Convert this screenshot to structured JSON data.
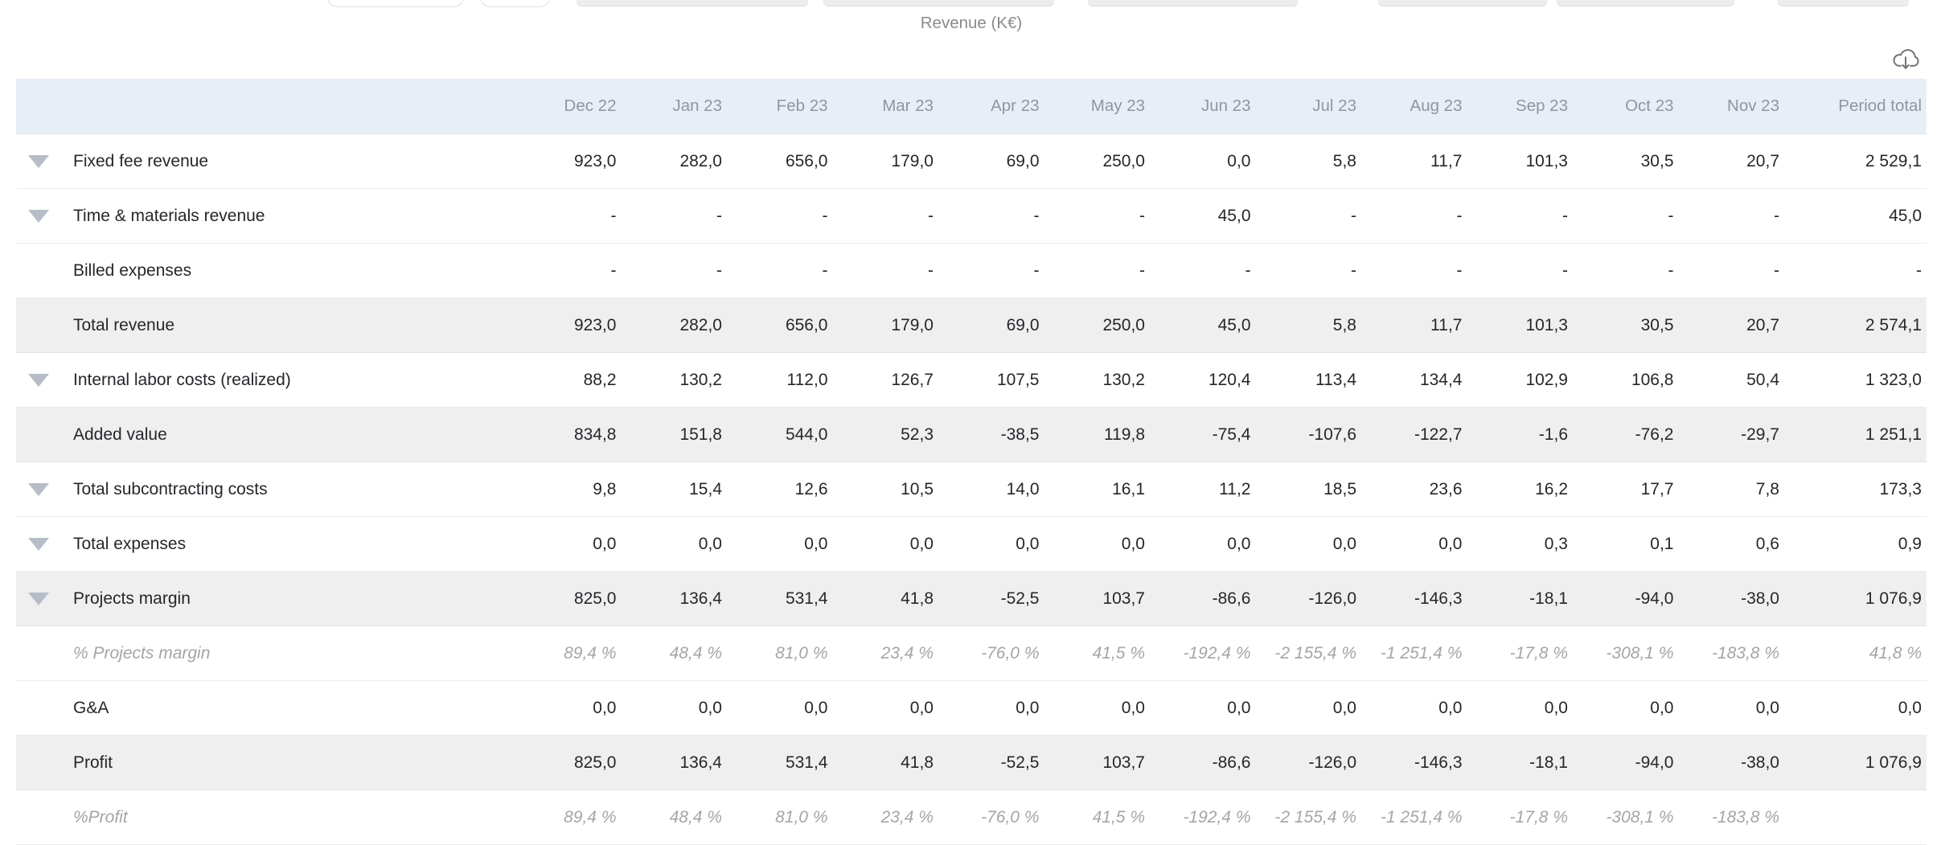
{
  "title": "Revenue (K€)",
  "icons": {
    "download": "cloud-download-icon",
    "row_expand": "triangle-down-icon"
  },
  "colors": {
    "header_bg": "#e8eef6",
    "highlight_row_bg": "#efefef",
    "header_text": "#8d97a2",
    "body_text": "#24272b",
    "percent_text": "#a5a5a5",
    "triangle": "#b6bdc6"
  },
  "table": {
    "columns": [
      "",
      "Dec 22",
      "Jan 23",
      "Feb 23",
      "Mar 23",
      "Apr 23",
      "May 23",
      "Jun 23",
      "Jul 23",
      "Aug 23",
      "Sep 23",
      "Oct 23",
      "Nov 23",
      "Period total"
    ],
    "rows": [
      {
        "label": "Fixed fee revenue",
        "expandable": true,
        "highlight": false,
        "percent": false,
        "values": [
          "923,0",
          "282,0",
          "656,0",
          "179,0",
          "69,0",
          "250,0",
          "0,0",
          "5,8",
          "11,7",
          "101,3",
          "30,5",
          "20,7",
          "2 529,1"
        ]
      },
      {
        "label": "Time & materials revenue",
        "expandable": true,
        "highlight": false,
        "percent": false,
        "values": [
          "-",
          "-",
          "-",
          "-",
          "-",
          "-",
          "45,0",
          "-",
          "-",
          "-",
          "-",
          "-",
          "45,0"
        ]
      },
      {
        "label": "Billed expenses",
        "expandable": false,
        "highlight": false,
        "percent": false,
        "values": [
          "-",
          "-",
          "-",
          "-",
          "-",
          "-",
          "-",
          "-",
          "-",
          "-",
          "-",
          "-",
          "-"
        ]
      },
      {
        "label": "Total revenue",
        "expandable": false,
        "highlight": true,
        "percent": false,
        "values": [
          "923,0",
          "282,0",
          "656,0",
          "179,0",
          "69,0",
          "250,0",
          "45,0",
          "5,8",
          "11,7",
          "101,3",
          "30,5",
          "20,7",
          "2 574,1"
        ]
      },
      {
        "label": "Internal labor costs (realized)",
        "expandable": true,
        "highlight": false,
        "percent": false,
        "values": [
          "88,2",
          "130,2",
          "112,0",
          "126,7",
          "107,5",
          "130,2",
          "120,4",
          "113,4",
          "134,4",
          "102,9",
          "106,8",
          "50,4",
          "1 323,0"
        ]
      },
      {
        "label": "Added value",
        "expandable": false,
        "highlight": true,
        "percent": false,
        "values": [
          "834,8",
          "151,8",
          "544,0",
          "52,3",
          "-38,5",
          "119,8",
          "-75,4",
          "-107,6",
          "-122,7",
          "-1,6",
          "-76,2",
          "-29,7",
          "1 251,1"
        ]
      },
      {
        "label": "Total subcontracting costs",
        "expandable": true,
        "highlight": false,
        "percent": false,
        "values": [
          "9,8",
          "15,4",
          "12,6",
          "10,5",
          "14,0",
          "16,1",
          "11,2",
          "18,5",
          "23,6",
          "16,2",
          "17,7",
          "7,8",
          "173,3"
        ]
      },
      {
        "label": "Total expenses",
        "expandable": true,
        "highlight": false,
        "percent": false,
        "values": [
          "0,0",
          "0,0",
          "0,0",
          "0,0",
          "0,0",
          "0,0",
          "0,0",
          "0,0",
          "0,0",
          "0,3",
          "0,1",
          "0,6",
          "0,9"
        ]
      },
      {
        "label": "Projects margin",
        "expandable": true,
        "highlight": true,
        "percent": false,
        "values": [
          "825,0",
          "136,4",
          "531,4",
          "41,8",
          "-52,5",
          "103,7",
          "-86,6",
          "-126,0",
          "-146,3",
          "-18,1",
          "-94,0",
          "-38,0",
          "1 076,9"
        ]
      },
      {
        "label": "% Projects margin",
        "expandable": false,
        "highlight": false,
        "percent": true,
        "values": [
          "89,4 %",
          "48,4 %",
          "81,0 %",
          "23,4 %",
          "-76,0 %",
          "41,5 %",
          "-192,4 %",
          "-2 155,4 %",
          "-1 251,4 %",
          "-17,8 %",
          "-308,1 %",
          "-183,8 %",
          "41,8 %"
        ]
      },
      {
        "label": "G&A",
        "expandable": false,
        "highlight": false,
        "percent": false,
        "values": [
          "0,0",
          "0,0",
          "0,0",
          "0,0",
          "0,0",
          "0,0",
          "0,0",
          "0,0",
          "0,0",
          "0,0",
          "0,0",
          "0,0",
          "0,0"
        ]
      },
      {
        "label": "Profit",
        "expandable": false,
        "highlight": true,
        "percent": false,
        "values": [
          "825,0",
          "136,4",
          "531,4",
          "41,8",
          "-52,5",
          "103,7",
          "-86,6",
          "-126,0",
          "-146,3",
          "-18,1",
          "-94,0",
          "-38,0",
          "1 076,9"
        ]
      },
      {
        "label": "%Profit",
        "expandable": false,
        "highlight": false,
        "percent": true,
        "values": [
          "89,4 %",
          "48,4 %",
          "81,0 %",
          "23,4 %",
          "-76,0 %",
          "41,5 %",
          "-192,4 %",
          "-2 155,4 %",
          "-1 251,4 %",
          "-17,8 %",
          "-308,1 %",
          "-183,8 %",
          ""
        ]
      }
    ]
  }
}
